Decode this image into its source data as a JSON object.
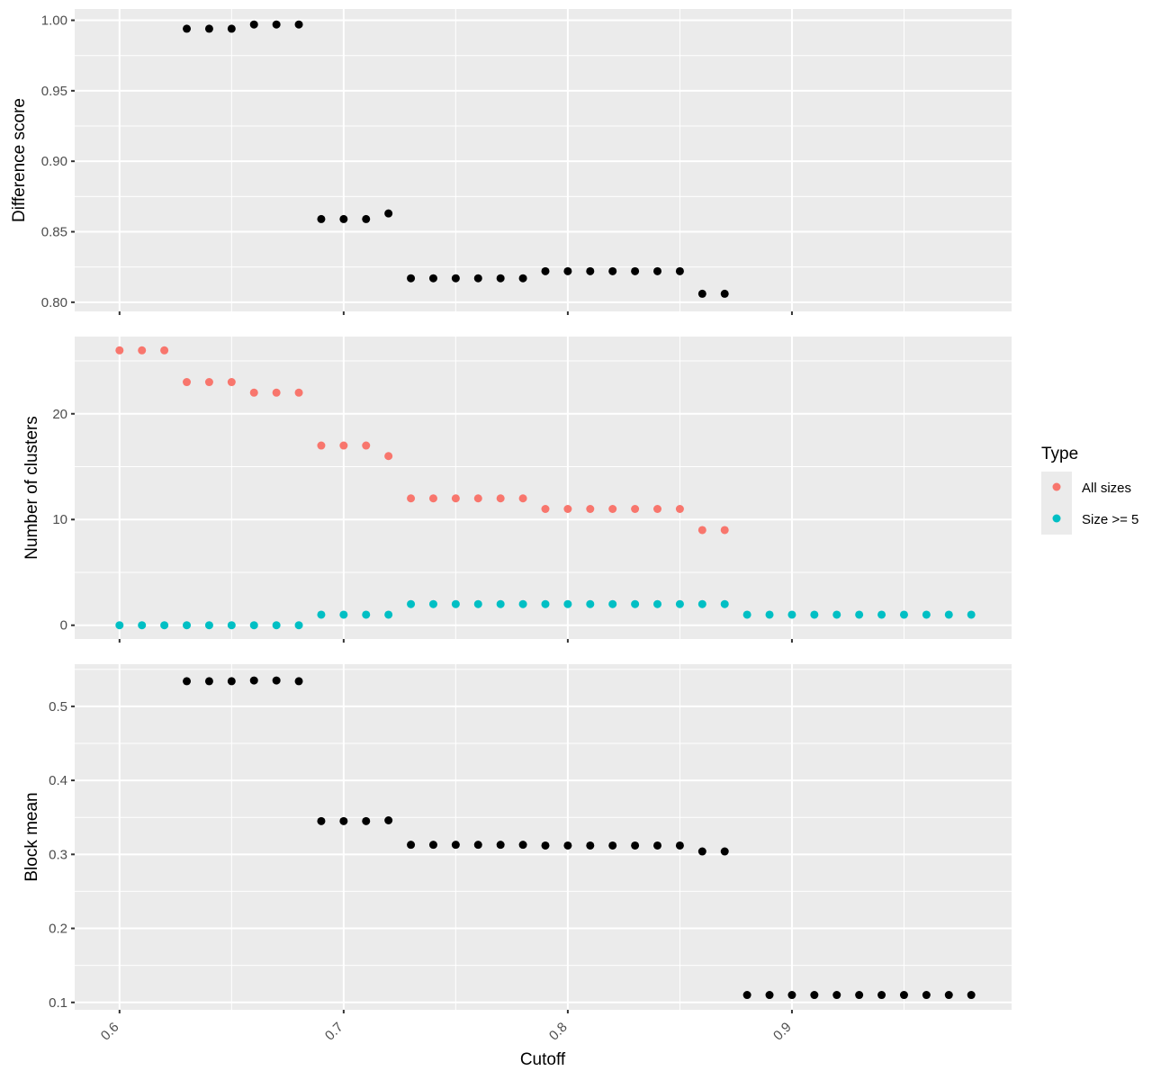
{
  "chart_data": {
    "type": "scatter",
    "xlabel": "Cutoff",
    "x_ticks": [
      "0.6",
      "0.7",
      "0.8",
      "0.9"
    ],
    "xlim": [
      0.58,
      0.998
    ],
    "grid": true,
    "legend": {
      "title": "Type",
      "placement": "right",
      "entries": [
        {
          "label": "All sizes",
          "color": "#f8766d"
        },
        {
          "label": "Size >= 5",
          "color": "#00bfc4"
        }
      ]
    },
    "panels": [
      {
        "ylabel": "Difference score",
        "y_ticks": [
          "0.80",
          "0.85",
          "0.90",
          "0.95",
          "1.00"
        ],
        "ylim": [
          0.7935,
          1.008
        ],
        "series": [
          {
            "color": "#000000",
            "x": [
              0.63,
              0.64,
              0.65,
              0.66,
              0.67,
              0.68,
              0.69,
              0.7,
              0.71,
              0.72,
              0.73,
              0.74,
              0.75,
              0.76,
              0.77,
              0.78,
              0.79,
              0.8,
              0.81,
              0.82,
              0.83,
              0.84,
              0.85,
              0.86,
              0.87
            ],
            "y": [
              0.994,
              0.994,
              0.994,
              0.997,
              0.997,
              0.997,
              0.859,
              0.859,
              0.859,
              0.863,
              0.817,
              0.817,
              0.817,
              0.817,
              0.817,
              0.817,
              0.822,
              0.822,
              0.822,
              0.822,
              0.822,
              0.822,
              0.822,
              0.806,
              0.806
            ]
          }
        ]
      },
      {
        "ylabel": "Number of clusters",
        "y_ticks": [
          "0",
          "10",
          "20"
        ],
        "ylim": [
          -1.3,
          27.3
        ],
        "series": [
          {
            "name": "All sizes",
            "color": "#f8766d",
            "x": [
              0.6,
              0.61,
              0.62,
              0.63,
              0.64,
              0.65,
              0.66,
              0.67,
              0.68,
              0.69,
              0.7,
              0.71,
              0.72,
              0.73,
              0.74,
              0.75,
              0.76,
              0.77,
              0.78,
              0.79,
              0.8,
              0.81,
              0.82,
              0.83,
              0.84,
              0.85,
              0.86,
              0.87
            ],
            "y": [
              26,
              26,
              26,
              23,
              23,
              23,
              22,
              22,
              22,
              17,
              17,
              17,
              16,
              12,
              12,
              12,
              12,
              12,
              12,
              11,
              11,
              11,
              11,
              11,
              11,
              11,
              9,
              9
            ]
          },
          {
            "name": "Size >= 5",
            "color": "#00bfc4",
            "x": [
              0.6,
              0.61,
              0.62,
              0.63,
              0.64,
              0.65,
              0.66,
              0.67,
              0.68,
              0.69,
              0.7,
              0.71,
              0.72,
              0.73,
              0.74,
              0.75,
              0.76,
              0.77,
              0.78,
              0.79,
              0.8,
              0.81,
              0.82,
              0.83,
              0.84,
              0.85,
              0.86,
              0.87,
              0.88,
              0.89,
              0.9,
              0.91,
              0.92,
              0.93,
              0.94,
              0.95,
              0.96,
              0.97,
              0.98
            ],
            "y": [
              0,
              0,
              0,
              0,
              0,
              0,
              0,
              0,
              0,
              1,
              1,
              1,
              1,
              2,
              2,
              2,
              2,
              2,
              2,
              2,
              2,
              2,
              2,
              2,
              2,
              2,
              2,
              2,
              1,
              1,
              1,
              1,
              1,
              1,
              1,
              1,
              1,
              1,
              1
            ]
          }
        ]
      },
      {
        "ylabel": "Block mean",
        "y_ticks": [
          "0.1",
          "0.2",
          "0.3",
          "0.4",
          "0.5"
        ],
        "ylim": [
          0.09,
          0.557
        ],
        "series": [
          {
            "color": "#000000",
            "x": [
              0.63,
              0.64,
              0.65,
              0.66,
              0.67,
              0.68,
              0.69,
              0.7,
              0.71,
              0.72,
              0.73,
              0.74,
              0.75,
              0.76,
              0.77,
              0.78,
              0.79,
              0.8,
              0.81,
              0.82,
              0.83,
              0.84,
              0.85,
              0.86,
              0.87,
              0.88,
              0.89,
              0.9,
              0.91,
              0.92,
              0.93,
              0.94,
              0.95,
              0.96,
              0.97,
              0.98
            ],
            "y": [
              0.534,
              0.534,
              0.534,
              0.535,
              0.535,
              0.534,
              0.345,
              0.345,
              0.345,
              0.346,
              0.313,
              0.313,
              0.313,
              0.313,
              0.313,
              0.313,
              0.312,
              0.312,
              0.312,
              0.312,
              0.312,
              0.312,
              0.312,
              0.304,
              0.304,
              0.11,
              0.11,
              0.11,
              0.11,
              0.11,
              0.11,
              0.11,
              0.11,
              0.11,
              0.11,
              0.11
            ]
          }
        ]
      }
    ]
  }
}
